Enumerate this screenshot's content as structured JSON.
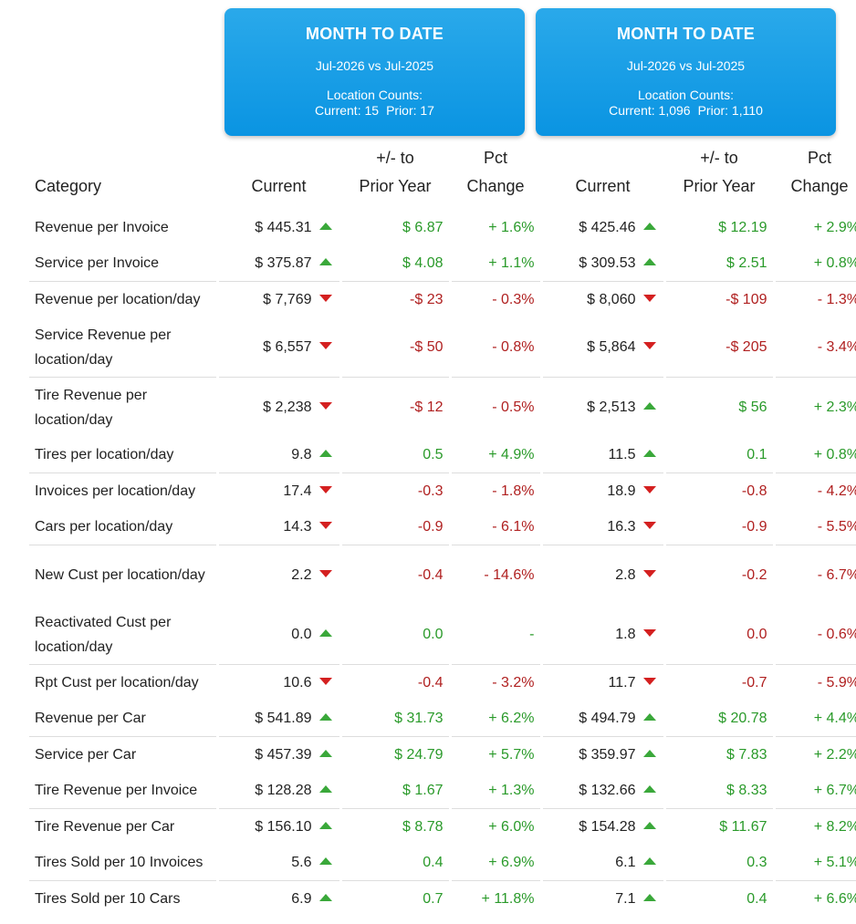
{
  "cards": [
    {
      "title": "MONTH TO DATE",
      "period": "Jul-2026 vs Jul-2025",
      "counts_label": "Location Counts:",
      "current": "Current: 15",
      "prior": "Prior: 17"
    },
    {
      "title": "MONTH TO DATE",
      "period": "Jul-2026 vs Jul-2025",
      "counts_label": "Location Counts:",
      "current": "Current: 1,096",
      "prior": "Prior: 1,110"
    }
  ],
  "headers": {
    "category": "Category",
    "current": "Current",
    "diff_line1": "+/- to",
    "diff_line2": "Prior Year",
    "pct_line1": "Pct",
    "pct_line2": "Change"
  },
  "colors": {
    "up": "#2a9a2a",
    "down": "#b02020",
    "card_blue": "#0a94e2"
  },
  "rows": [
    {
      "category": "Revenue per Invoice",
      "tall": false,
      "line": false,
      "a": {
        "current": "$ 445.31",
        "trend": "up",
        "diff": "$ 6.87",
        "pct": "+ 1.6%"
      },
      "b": {
        "current": "$ 425.46",
        "trend": "up",
        "diff": "$ 12.19",
        "pct": "+ 2.9%"
      }
    },
    {
      "category": "Service per Invoice",
      "tall": false,
      "line": true,
      "a": {
        "current": "$ 375.87",
        "trend": "up",
        "diff": "$ 4.08",
        "pct": "+ 1.1%"
      },
      "b": {
        "current": "$ 309.53",
        "trend": "up",
        "diff": "$ 2.51",
        "pct": "+ 0.8%"
      }
    },
    {
      "category": "Revenue per location/day",
      "tall": false,
      "line": false,
      "a": {
        "current": "$ 7,769",
        "trend": "down",
        "diff": "-$ 23",
        "pct": "- 0.3%"
      },
      "b": {
        "current": "$ 8,060",
        "trend": "down",
        "diff": "-$ 109",
        "pct": "- 1.3%"
      }
    },
    {
      "category": "Service Revenue per location/day",
      "tall": true,
      "line": true,
      "a": {
        "current": "$ 6,557",
        "trend": "down",
        "diff": "-$ 50",
        "pct": "- 0.8%"
      },
      "b": {
        "current": "$ 5,864",
        "trend": "down",
        "diff": "-$ 205",
        "pct": "- 3.4%"
      }
    },
    {
      "category": "Tire Revenue per location/day",
      "tall": true,
      "line": false,
      "a": {
        "current": "$ 2,238",
        "trend": "down",
        "diff": "-$ 12",
        "pct": "- 0.5%"
      },
      "b": {
        "current": "$ 2,513",
        "trend": "up",
        "diff": "$ 56",
        "pct": "+ 2.3%"
      }
    },
    {
      "category": "Tires per location/day",
      "tall": false,
      "line": true,
      "a": {
        "current": "9.8",
        "trend": "up",
        "diff": "0.5",
        "pct": "+ 4.9%"
      },
      "b": {
        "current": "11.5",
        "trend": "up",
        "diff": "0.1",
        "pct": "+ 0.8%"
      }
    },
    {
      "category": "Invoices per location/day",
      "tall": false,
      "line": false,
      "a": {
        "current": "17.4",
        "trend": "down",
        "diff": "-0.3",
        "pct": "- 1.8%"
      },
      "b": {
        "current": "18.9",
        "trend": "down",
        "diff": "-0.8",
        "pct": "- 4.2%"
      }
    },
    {
      "category": "Cars per location/day",
      "tall": false,
      "line": true,
      "a": {
        "current": "14.3",
        "trend": "down",
        "diff": "-0.9",
        "pct": "- 6.1%"
      },
      "b": {
        "current": "16.3",
        "trend": "down",
        "diff": "-0.9",
        "pct": "- 5.5%"
      }
    },
    {
      "category": "New Cust per location/day",
      "tall": true,
      "line": false,
      "a": {
        "current": "2.2",
        "trend": "down",
        "diff": "-0.4",
        "pct": "- 14.6%"
      },
      "b": {
        "current": "2.8",
        "trend": "down",
        "diff": "-0.2",
        "pct": "- 6.7%"
      }
    },
    {
      "category": "Reactivated Cust per location/day",
      "tall": true,
      "line": true,
      "a": {
        "current": "0.0",
        "trend": "up",
        "diff": "0.0",
        "pct": "-"
      },
      "b": {
        "current": "1.8",
        "trend": "down",
        "diff": "0.0",
        "pct": "- 0.6%"
      }
    },
    {
      "category": "Rpt Cust per location/day",
      "tall": false,
      "line": false,
      "a": {
        "current": "10.6",
        "trend": "down",
        "diff": "-0.4",
        "pct": "- 3.2%"
      },
      "b": {
        "current": "11.7",
        "trend": "down",
        "diff": "-0.7",
        "pct": "- 5.9%"
      }
    },
    {
      "category": "Revenue per Car",
      "tall": false,
      "line": true,
      "a": {
        "current": "$ 541.89",
        "trend": "up",
        "diff": "$ 31.73",
        "pct": "+ 6.2%"
      },
      "b": {
        "current": "$ 494.79",
        "trend": "up",
        "diff": "$ 20.78",
        "pct": "+ 4.4%"
      }
    },
    {
      "category": "Service per Car",
      "tall": false,
      "line": false,
      "a": {
        "current": "$ 457.39",
        "trend": "up",
        "diff": "$ 24.79",
        "pct": "+ 5.7%"
      },
      "b": {
        "current": "$ 359.97",
        "trend": "up",
        "diff": "$ 7.83",
        "pct": "+ 2.2%"
      }
    },
    {
      "category": "Tire Revenue per Invoice",
      "tall": false,
      "line": true,
      "a": {
        "current": "$ 128.28",
        "trend": "up",
        "diff": "$ 1.67",
        "pct": "+ 1.3%"
      },
      "b": {
        "current": "$ 132.66",
        "trend": "up",
        "diff": "$ 8.33",
        "pct": "+ 6.7%"
      }
    },
    {
      "category": "Tire Revenue per Car",
      "tall": false,
      "line": false,
      "a": {
        "current": "$ 156.10",
        "trend": "up",
        "diff": "$ 8.78",
        "pct": "+ 6.0%"
      },
      "b": {
        "current": "$ 154.28",
        "trend": "up",
        "diff": "$ 11.67",
        "pct": "+ 8.2%"
      }
    },
    {
      "category": "Tires Sold per 10 Invoices",
      "tall": false,
      "line": true,
      "a": {
        "current": "5.6",
        "trend": "up",
        "diff": "0.4",
        "pct": "+ 6.9%"
      },
      "b": {
        "current": "6.1",
        "trend": "up",
        "diff": "0.3",
        "pct": "+ 5.1%"
      }
    },
    {
      "category": "Tires Sold per 10 Cars",
      "tall": false,
      "line": false,
      "a": {
        "current": "6.9",
        "trend": "up",
        "diff": "0.7",
        "pct": "+ 11.8%"
      },
      "b": {
        "current": "7.1",
        "trend": "up",
        "diff": "0.4",
        "pct": "+ 6.6%"
      }
    }
  ]
}
